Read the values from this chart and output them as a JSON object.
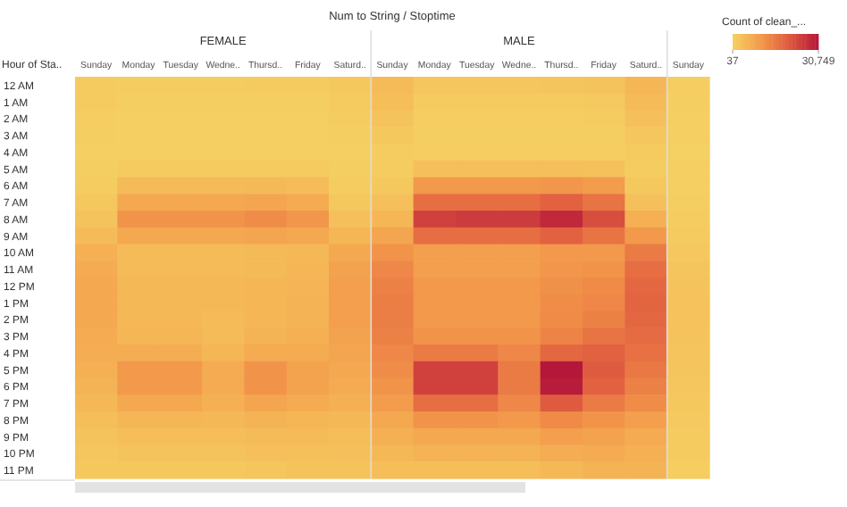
{
  "chart_data": {
    "type": "heatmap",
    "title": "Num to String / Stoptime",
    "ylabel": "Hour of Sta..",
    "clabel": "Count of clean_...",
    "annotations": [
      "FEMALE",
      "MALE"
    ],
    "categories": [
      "Sunday",
      "Monday",
      "Tuesday",
      "Wedne..",
      "Thursd..",
      "Friday",
      "Saturd..",
      "Sunday",
      "Monday",
      "Tuesday",
      "Wedne..",
      "Thursd..",
      "Friday",
      "Saturd..",
      "Sunday"
    ],
    "y_categories": [
      "12 AM",
      "1 AM",
      "2 AM",
      "3 AM",
      "4 AM",
      "5 AM",
      "6 AM",
      "7 AM",
      "8 AM",
      "9 AM",
      "10 AM",
      "11 AM",
      "12 PM",
      "1 PM",
      "2 PM",
      "3 PM",
      "4 PM",
      "5 PM",
      "6 PM",
      "7 PM",
      "8 PM",
      "9 PM",
      "10 PM",
      "11 PM"
    ],
    "cells": [
      [
        1200,
        800,
        800,
        800,
        900,
        1000,
        1500,
        4000,
        2000,
        2000,
        2000,
        2200,
        2500,
        5000,
        600
      ],
      [
        900,
        400,
        400,
        400,
        400,
        500,
        1200,
        3500,
        1000,
        1000,
        1000,
        1100,
        1300,
        4000,
        500
      ],
      [
        600,
        300,
        300,
        300,
        300,
        300,
        800,
        2500,
        600,
        600,
        600,
        600,
        800,
        3000,
        300
      ],
      [
        400,
        200,
        200,
        200,
        200,
        200,
        500,
        1500,
        400,
        400,
        400,
        400,
        500,
        2000,
        200
      ],
      [
        300,
        300,
        300,
        300,
        300,
        300,
        300,
        800,
        600,
        600,
        600,
        600,
        600,
        1000,
        37
      ],
      [
        400,
        1200,
        1200,
        1200,
        1200,
        1100,
        400,
        800,
        3000,
        3000,
        3000,
        3000,
        2800,
        800,
        150
      ],
      [
        800,
        4000,
        4000,
        4000,
        4200,
        3800,
        800,
        1500,
        10000,
        10000,
        10000,
        10500,
        9500,
        1500,
        300
      ],
      [
        1500,
        7500,
        7500,
        7500,
        8000,
        7000,
        1500,
        3000,
        17000,
        17000,
        17000,
        19000,
        16000,
        3000,
        500
      ],
      [
        2500,
        11000,
        11000,
        11000,
        12000,
        10500,
        3000,
        5000,
        24000,
        25000,
        25000,
        28000,
        22000,
        6000,
        800
      ],
      [
        4000,
        7500,
        7500,
        7500,
        8000,
        7500,
        5000,
        8000,
        17000,
        17000,
        17000,
        19000,
        16000,
        10000,
        1200
      ],
      [
        6000,
        4000,
        4000,
        4000,
        4200,
        4500,
        7500,
        11000,
        9000,
        9000,
        9000,
        10000,
        10000,
        15000,
        1800
      ],
      [
        7000,
        4000,
        4000,
        4000,
        4200,
        4800,
        8500,
        13000,
        9000,
        9000,
        9000,
        10500,
        11000,
        17000,
        2200
      ],
      [
        7500,
        4500,
        4500,
        4500,
        4800,
        5200,
        9000,
        14000,
        10000,
        10000,
        10000,
        11500,
        12500,
        18000,
        2500
      ],
      [
        7500,
        4500,
        4500,
        4500,
        4800,
        5500,
        9000,
        14500,
        10000,
        10000,
        10000,
        12000,
        13000,
        18500,
        2600
      ],
      [
        7500,
        4500,
        4500,
        4000,
        5000,
        5500,
        9000,
        14500,
        10000,
        10000,
        10000,
        12500,
        14000,
        18000,
        2600
      ],
      [
        7000,
        5000,
        5000,
        4000,
        5500,
        6000,
        8500,
        14000,
        11000,
        11000,
        11000,
        13500,
        16000,
        17500,
        2500
      ],
      [
        6500,
        6500,
        6500,
        5000,
        7000,
        7000,
        8000,
        13000,
        15000,
        15000,
        13000,
        18000,
        19000,
        16500,
        2300
      ],
      [
        6000,
        10000,
        10000,
        7000,
        11000,
        8500,
        7500,
        12000,
        24000,
        24000,
        15000,
        30749,
        20000,
        15500,
        2100
      ],
      [
        5500,
        10000,
        10000,
        7000,
        11000,
        8500,
        7000,
        11000,
        24000,
        24000,
        15000,
        30000,
        19000,
        14000,
        1900
      ],
      [
        4500,
        7500,
        7500,
        6000,
        8000,
        7000,
        6000,
        9500,
        17000,
        17000,
        13000,
        20000,
        15000,
        12000,
        1600
      ],
      [
        3500,
        5000,
        5000,
        4500,
        5500,
        5000,
        4500,
        7500,
        11000,
        11000,
        10000,
        12500,
        11000,
        9000,
        1300
      ],
      [
        2500,
        3500,
        3500,
        3500,
        4000,
        4000,
        3500,
        6000,
        7500,
        7500,
        7500,
        9000,
        8500,
        7000,
        1000
      ],
      [
        2000,
        2500,
        2500,
        2500,
        3000,
        3200,
        3000,
        4500,
        5500,
        5500,
        5500,
        6500,
        7000,
        6000,
        900
      ],
      [
        1500,
        1500,
        1500,
        1500,
        2000,
        2500,
        2500,
        3500,
        3500,
        3500,
        3500,
        4500,
        5500,
        5500,
        700
      ]
    ],
    "clim": [
      37,
      30749
    ],
    "cticks": [
      {
        "value": 37,
        "label": "37"
      },
      {
        "value": 30749,
        "label": "30,749"
      }
    ]
  }
}
